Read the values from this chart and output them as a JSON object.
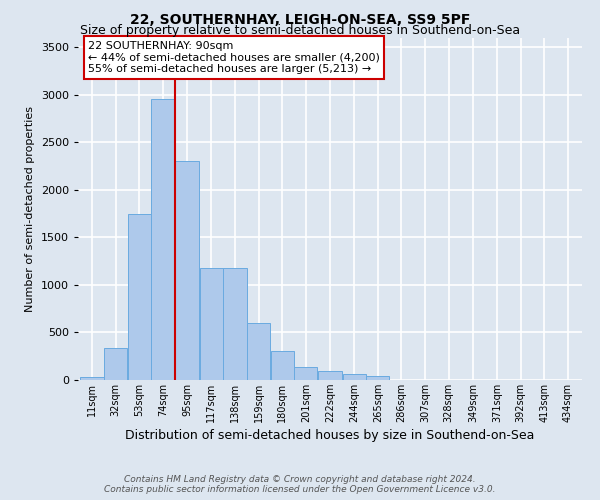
{
  "title": "22, SOUTHERNHAY, LEIGH-ON-SEA, SS9 5PF",
  "subtitle": "Size of property relative to semi-detached houses in Southend-on-Sea",
  "xlabel": "Distribution of semi-detached houses by size in Southend-on-Sea",
  "ylabel": "Number of semi-detached properties",
  "footer_line1": "Contains HM Land Registry data © Crown copyright and database right 2024.",
  "footer_line2": "Contains public sector information licensed under the Open Government Licence v3.0.",
  "annotation_title": "22 SOUTHERNHAY: 90sqm",
  "annotation_line1": "← 44% of semi-detached houses are smaller (4,200)",
  "annotation_line2": "55% of semi-detached houses are larger (5,213) →",
  "bar_color": "#aec9eb",
  "bar_edge_color": "#6aaae0",
  "property_line_x": 95,
  "property_line_color": "#cc0000",
  "bar_categories": [
    "11sqm",
    "32sqm",
    "53sqm",
    "74sqm",
    "95sqm",
    "117sqm",
    "138sqm",
    "159sqm",
    "180sqm",
    "201sqm",
    "222sqm",
    "244sqm",
    "265sqm",
    "286sqm",
    "307sqm",
    "328sqm",
    "349sqm",
    "371sqm",
    "392sqm",
    "413sqm",
    "434sqm"
  ],
  "bar_left_edges": [
    11,
    32,
    53,
    74,
    95,
    117,
    138,
    159,
    180,
    201,
    222,
    244,
    265,
    286,
    307,
    328,
    349,
    371,
    392,
    413,
    434
  ],
  "bar_widths": [
    21,
    21,
    21,
    21,
    22,
    21,
    21,
    21,
    21,
    21,
    22,
    21,
    21,
    21,
    21,
    21,
    22,
    21,
    21,
    21,
    21
  ],
  "bar_heights": [
    30,
    335,
    1750,
    2950,
    2300,
    1175,
    1175,
    600,
    300,
    140,
    90,
    60,
    40,
    0,
    0,
    0,
    0,
    0,
    0,
    0,
    0
  ],
  "ylim": [
    0,
    3600
  ],
  "yticks": [
    0,
    500,
    1000,
    1500,
    2000,
    2500,
    3000,
    3500
  ],
  "background_color": "#dde6f0",
  "plot_bg_color": "#dde6f0",
  "grid_color": "#ffffff",
  "title_fontsize": 10,
  "subtitle_fontsize": 9,
  "ylabel_fontsize": 8,
  "xlabel_fontsize": 9,
  "tick_fontsize": 8,
  "xtick_fontsize": 7,
  "annotation_fontsize": 8,
  "annotation_box_facecolor": "#ffffff",
  "annotation_box_edge_color": "#cc0000",
  "footer_fontsize": 6.5,
  "footer_color": "#555555"
}
